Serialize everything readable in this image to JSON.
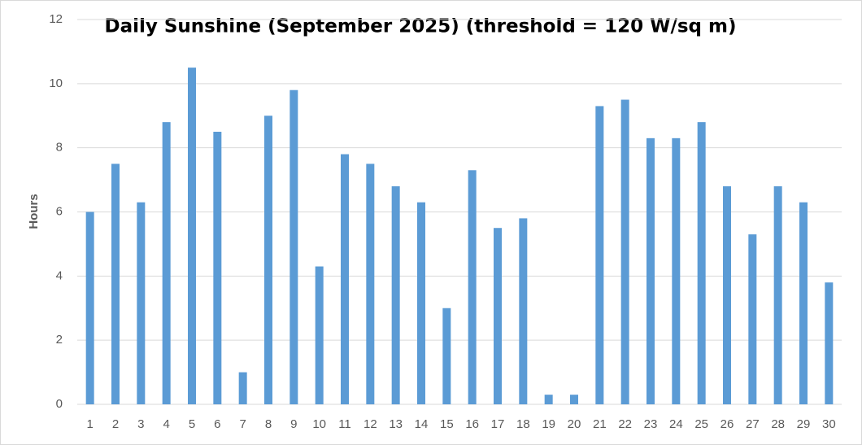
{
  "chart_data": {
    "type": "bar",
    "title": "Daily Sunshine (September 2025) (threshold = 120 W/sq m)",
    "y_label": "Hours",
    "categories": [
      "1",
      "2",
      "3",
      "4",
      "5",
      "6",
      "7",
      "8",
      "9",
      "10",
      "11",
      "12",
      "13",
      "14",
      "15",
      "16",
      "17",
      "18",
      "19",
      "20",
      "21",
      "22",
      "23",
      "24",
      "25",
      "26",
      "27",
      "28",
      "29",
      "30"
    ],
    "values": [
      6,
      7.5,
      6.3,
      8.8,
      10.5,
      8.5,
      1,
      9,
      9.8,
      4.3,
      7.8,
      7.5,
      6.8,
      6.3,
      3,
      7.3,
      5.5,
      5.8,
      0.3,
      0.3,
      9.3,
      9.5,
      8.3,
      8.3,
      8.8,
      6.8,
      5.3,
      6.8,
      6.3,
      3.8
    ],
    "color": "#5b9bd5",
    "ylim": [
      0,
      12
    ],
    "yticks": [
      0,
      2,
      4,
      6,
      8,
      10,
      12
    ],
    "grid": true
  }
}
